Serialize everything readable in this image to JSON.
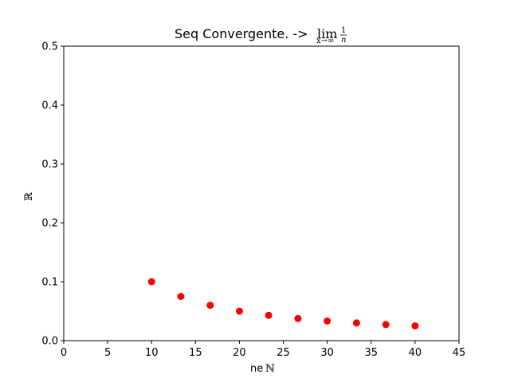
{
  "chart_data": {
    "type": "scatter",
    "title": {
      "prefix": "Seq Convergente. ->",
      "lim": "lim",
      "sub": "x→∞",
      "frac_num": "1",
      "frac_den": "n"
    },
    "xlabel": {
      "text": "ne",
      "symbol": "ℕ"
    },
    "ylabel": "ℝ",
    "xlim": [
      0,
      45
    ],
    "ylim": [
      0,
      0.5
    ],
    "xticks": [
      0,
      5,
      10,
      15,
      20,
      25,
      30,
      35,
      40,
      45
    ],
    "yticks": [
      0.0,
      0.1,
      0.2,
      0.3,
      0.4,
      0.5
    ],
    "ytick_labels": [
      "0.0",
      "0.1",
      "0.2",
      "0.3",
      "0.4",
      "0.5"
    ],
    "grid": false,
    "marker_color": "#ff0000",
    "series": [
      {
        "x": [
          10,
          13.33,
          16.67,
          20,
          23.33,
          26.67,
          30,
          33.33,
          36.67,
          40
        ],
        "y": [
          0.1,
          0.075,
          0.06,
          0.05,
          0.0429,
          0.0375,
          0.0333,
          0.03,
          0.0273,
          0.025
        ]
      }
    ]
  }
}
